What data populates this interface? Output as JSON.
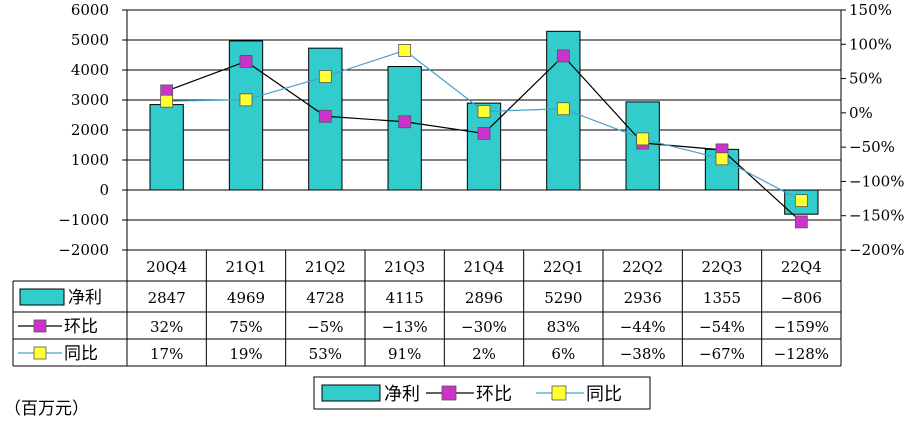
{
  "chart_data": {
    "type": "bar",
    "categories": [
      "20Q4",
      "21Q1",
      "21Q2",
      "21Q3",
      "21Q4",
      "22Q1",
      "22Q2",
      "22Q3",
      "22Q4"
    ],
    "series": [
      {
        "name": "净利",
        "type": "bar",
        "axis": "left",
        "values": [
          2847,
          4969,
          4728,
          4115,
          2896,
          5290,
          2936,
          1355,
          -806
        ],
        "color": "#33CCCC"
      },
      {
        "name": "环比",
        "type": "line",
        "axis": "right",
        "values": [
          32,
          75,
          -5,
          -13,
          -30,
          83,
          -44,
          -54,
          -159
        ],
        "color": "#CC33CC"
      },
      {
        "name": "同比",
        "type": "line",
        "axis": "right",
        "values": [
          17,
          19,
          53,
          91,
          2,
          6,
          -38,
          -67,
          -128
        ],
        "color": "#FFFF33"
      }
    ],
    "table_values": {
      "net": [
        "2847",
        "4969",
        "4728",
        "4115",
        "2896",
        "5290",
        "2936",
        "1355",
        "−806"
      ],
      "qoq": [
        "32%",
        "75%",
        "−5%",
        "−13%",
        "−30%",
        "83%",
        "−44%",
        "−54%",
        "−159%"
      ],
      "yoy": [
        "17%",
        "19%",
        "53%",
        "91%",
        "2%",
        "6%",
        "−38%",
        "−67%",
        "−128%"
      ]
    },
    "y_left": {
      "min": -2000,
      "max": 6000,
      "step": 1000,
      "ticks": [
        "6000",
        "5000",
        "4000",
        "3000",
        "2000",
        "1000",
        "0",
        "−1000",
        "−2000"
      ]
    },
    "y_right": {
      "min": -200,
      "max": 150,
      "step": 50,
      "ticks": [
        "150%",
        "100%",
        "50%",
        "0%",
        "−50%",
        "−100%",
        "−150%",
        "−200%"
      ]
    },
    "grid": true,
    "legend_position": "bottom",
    "unit_label": "（百万元）"
  }
}
